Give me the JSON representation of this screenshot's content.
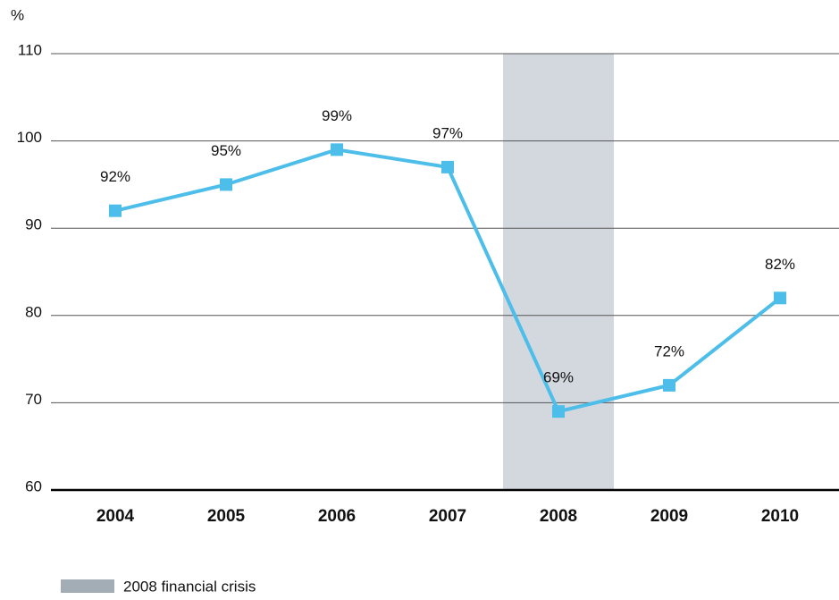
{
  "chart_data": {
    "type": "line",
    "y_label": "%",
    "categories": [
      "2004",
      "2005",
      "2006",
      "2007",
      "2008",
      "2009",
      "2010"
    ],
    "series": [
      {
        "name": "",
        "color": "#4dbde9",
        "values": [
          92,
          95,
          99,
          97,
          69,
          72,
          82
        ],
        "value_labels": [
          "92%",
          "95%",
          "99%",
          "97%",
          "69%",
          "72%",
          "82%"
        ]
      }
    ],
    "ylim": [
      60,
      110
    ],
    "yticks": [
      60,
      70,
      80,
      90,
      100,
      110
    ],
    "grid": true,
    "highlight": {
      "name": "2008 financial crisis",
      "x": "2008",
      "color": "#d3d8df",
      "legend_color": "#a3adb5"
    }
  }
}
